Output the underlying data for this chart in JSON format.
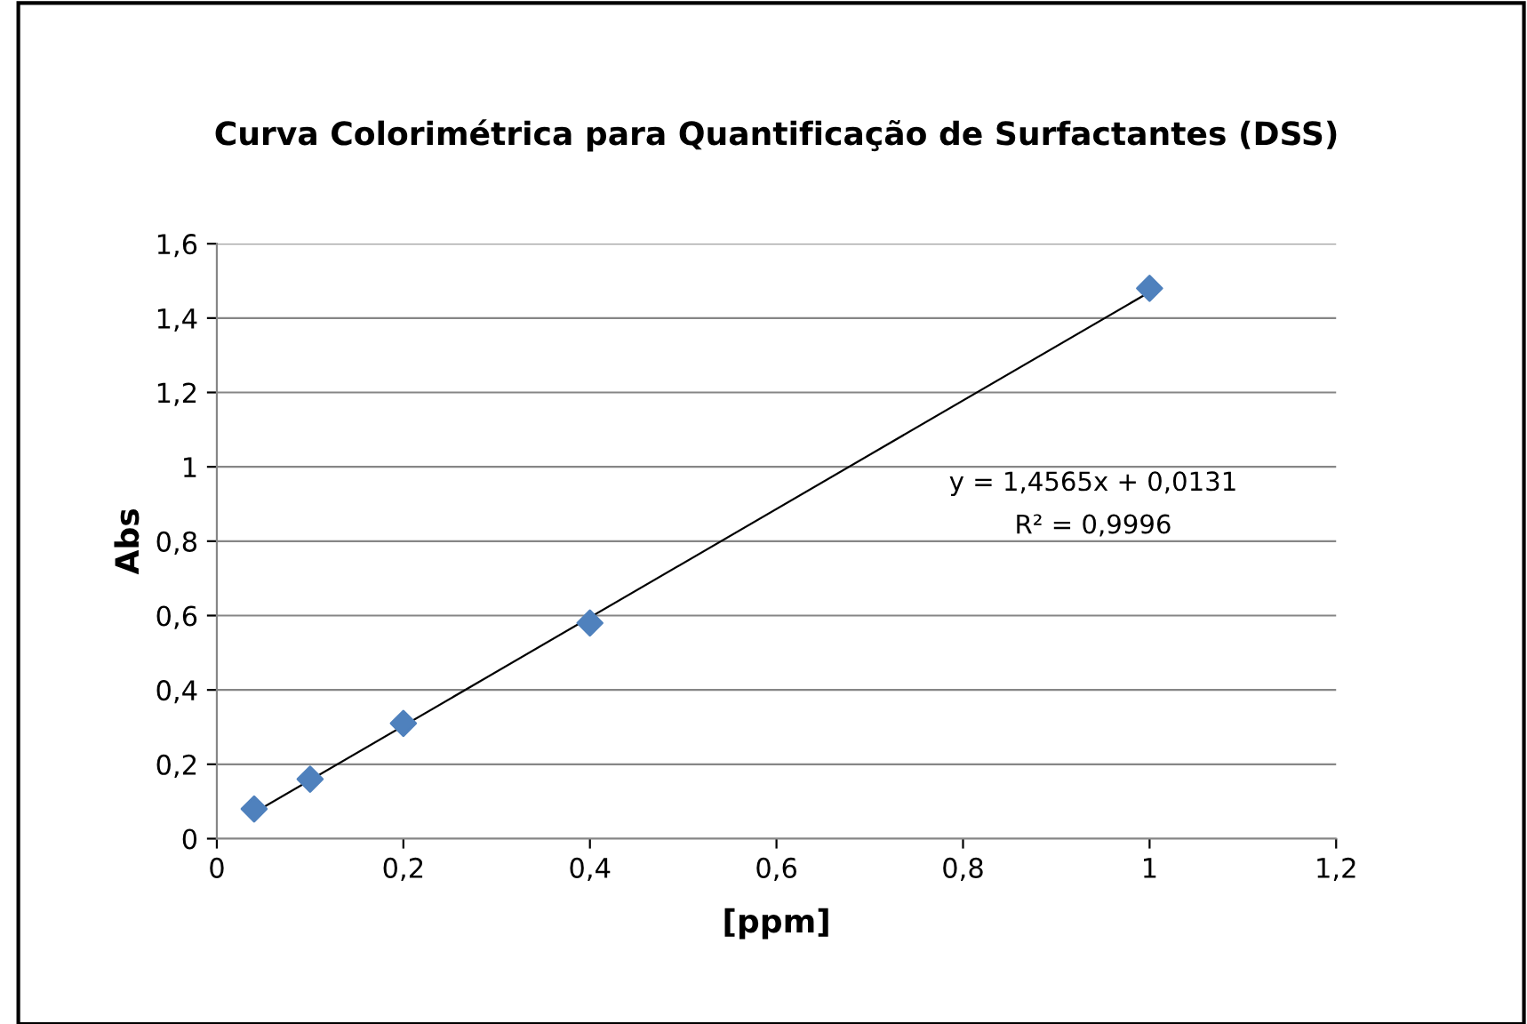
{
  "chart_data": {
    "type": "scatter",
    "title": "Curva Colorimétrica para Quantificação de Surfactantes (DSS)",
    "xlabel": "[ppm]",
    "ylabel": "Abs",
    "x": [
      0.04,
      0.1,
      0.2,
      0.4,
      1.0
    ],
    "series": [
      {
        "color": "#4f81bd",
        "marker": "diamond",
        "values": [
          0.08,
          0.16,
          0.31,
          0.58,
          1.48
        ]
      },
      {
        "type": "line",
        "color": "#000000",
        "marker": "none",
        "line_style": "solid",
        "x": [
          0.04,
          1.0
        ],
        "values": [
          0.07,
          1.47
        ]
      }
    ],
    "annotations": [
      "y = 1,4565x + 0,0131",
      "R² = 0,9996"
    ],
    "xlim": [
      0,
      1.2
    ],
    "xticks": [
      0,
      {
        "value": 0.2,
        "label": "0,2"
      },
      {
        "value": 0.4,
        "label": "0,4"
      },
      {
        "value": 0.6,
        "label": "0,6"
      },
      {
        "value": 0.8,
        "label": "0,8"
      },
      1,
      {
        "value": 1.2,
        "label": "1,2"
      }
    ],
    "ylim": [
      0,
      1.6
    ],
    "yticks": [
      0,
      {
        "value": 0.2,
        "label": "0,2"
      },
      {
        "value": 0.4,
        "label": "0,4"
      },
      {
        "value": 0.6,
        "label": "0,6"
      },
      {
        "value": 0.8,
        "label": "0,8"
      },
      1,
      {
        "value": 1.2,
        "label": "1,2"
      },
      {
        "value": 1.4,
        "label": "1,4"
      },
      {
        "value": 1.6,
        "label": "1,6"
      }
    ],
    "grid": "y",
    "legend": false
  }
}
